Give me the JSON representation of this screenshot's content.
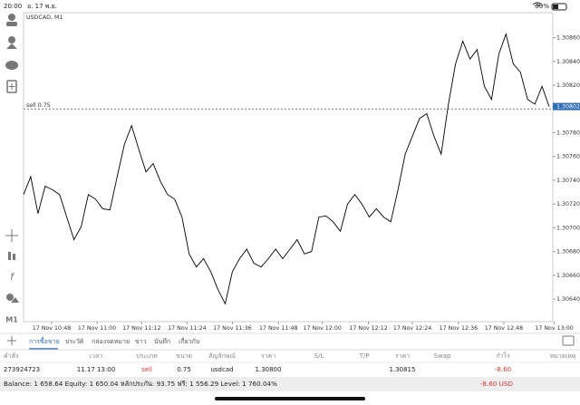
{
  "status_bar": {
    "time": "20:00",
    "date": "อ. 17 พ.ย.",
    "battery": "39%"
  },
  "toolbar": {
    "timeframe": "M1"
  },
  "chart_data": {
    "type": "line",
    "title": "USDCAD, M1",
    "color": "#000000",
    "grid": false,
    "values": [
      1.30728,
      1.30743,
      1.30712,
      1.30735,
      1.30732,
      1.30728,
      1.30709,
      1.3069,
      1.30701,
      1.30728,
      1.30724,
      1.30716,
      1.30715,
      1.30743,
      1.3077,
      1.30786,
      1.30766,
      1.30747,
      1.30754,
      1.30739,
      1.30728,
      1.30724,
      1.30709,
      1.30678,
      1.30667,
      1.30674,
      1.30663,
      1.30648,
      1.30636,
      1.30663,
      1.30674,
      1.30682,
      1.3067,
      1.30667,
      1.30674,
      1.30682,
      1.30674,
      1.30682,
      1.3069,
      1.30678,
      1.3068,
      1.30709,
      1.3071,
      1.30705,
      1.30697,
      1.3072,
      1.30728,
      1.3072,
      1.30709,
      1.30716,
      1.30709,
      1.30705,
      1.30732,
      1.30762,
      1.30777,
      1.30792,
      1.30796,
      1.30777,
      1.30762,
      1.30804,
      1.30838,
      1.30857,
      1.30842,
      1.3085,
      1.30819,
      1.30808,
      1.30846,
      1.30863,
      1.30838,
      1.30831,
      1.30808,
      1.30804,
      1.30819,
      1.30802
    ],
    "xlim": [
      0,
      73
    ],
    "ylim": [
      1.30621,
      1.30881
    ],
    "xticks": [
      {
        "value": 3.9,
        "label": "17 Nov 10:48"
      },
      {
        "value": 10.2,
        "label": "17 Nov 11:00"
      },
      {
        "value": 16.4,
        "label": "17 Nov 11:12"
      },
      {
        "value": 22.7,
        "label": "17 Nov 11:24"
      },
      {
        "value": 29.0,
        "label": "17 Nov 11:36"
      },
      {
        "value": 35.4,
        "label": "17 Nov 11:48"
      },
      {
        "value": 41.5,
        "label": "17 Nov 12:00"
      },
      {
        "value": 47.9,
        "label": "17 Nov 12:12"
      },
      {
        "value": 54.0,
        "label": "17 Nov 12:24"
      },
      {
        "value": 60.4,
        "label": "17 Nov 12:36"
      },
      {
        "value": 66.7,
        "label": "17 Nov 12:48"
      },
      {
        "value": 73.7,
        "label": "17 Nov 13:00"
      }
    ],
    "yticks": [
      {
        "value": 1.3086,
        "label": "1.30860"
      },
      {
        "value": 1.3084,
        "label": "1.30840"
      },
      {
        "value": 1.3082,
        "label": "1.30820"
      },
      {
        "value": 1.3078,
        "label": "1.30780"
      },
      {
        "value": 1.3076,
        "label": "1.30760"
      },
      {
        "value": 1.3074,
        "label": "1.30740"
      },
      {
        "value": 1.3072,
        "label": "1.30720"
      },
      {
        "value": 1.307,
        "label": "1.30700"
      },
      {
        "value": 1.3068,
        "label": "1.30680"
      },
      {
        "value": 1.3066,
        "label": "1.30660"
      },
      {
        "value": 1.3064,
        "label": "1.30640"
      }
    ],
    "current_price": {
      "value": 1.30802,
      "label": "1.30802"
    },
    "order_line": {
      "value": 1.308,
      "label": "sell 0.75"
    }
  },
  "tabs": [
    "การซื้อขาย",
    "ประวัติ",
    "กล่องจดหมาย",
    "ข่าว",
    "บันทึก",
    "เกี่ยวกับ"
  ],
  "table": {
    "columns": [
      "คำสั่ง",
      "เวลา",
      "ประเภท",
      "ขนาด",
      "สัญลักษณ์",
      "ราคา",
      "S/L",
      "T/P",
      "ราคา",
      "Swap",
      "กำไร",
      "หมายเหตุ"
    ],
    "rows": [
      {
        "order": "273924723",
        "time": "11.17 13:00",
        "type": "sell",
        "size": "0.75",
        "symbol": "usdcad",
        "open_price": "1.30800",
        "price": "1.30815",
        "profit": "-8.60"
      }
    ]
  },
  "summary": {
    "text": "Balance: 1 658.64 Equity: 1 650.04 หลักประกัน: 93.75 ฟรี: 1 556.29 Level: 1 760.04%",
    "total": "-8.60 USD"
  }
}
